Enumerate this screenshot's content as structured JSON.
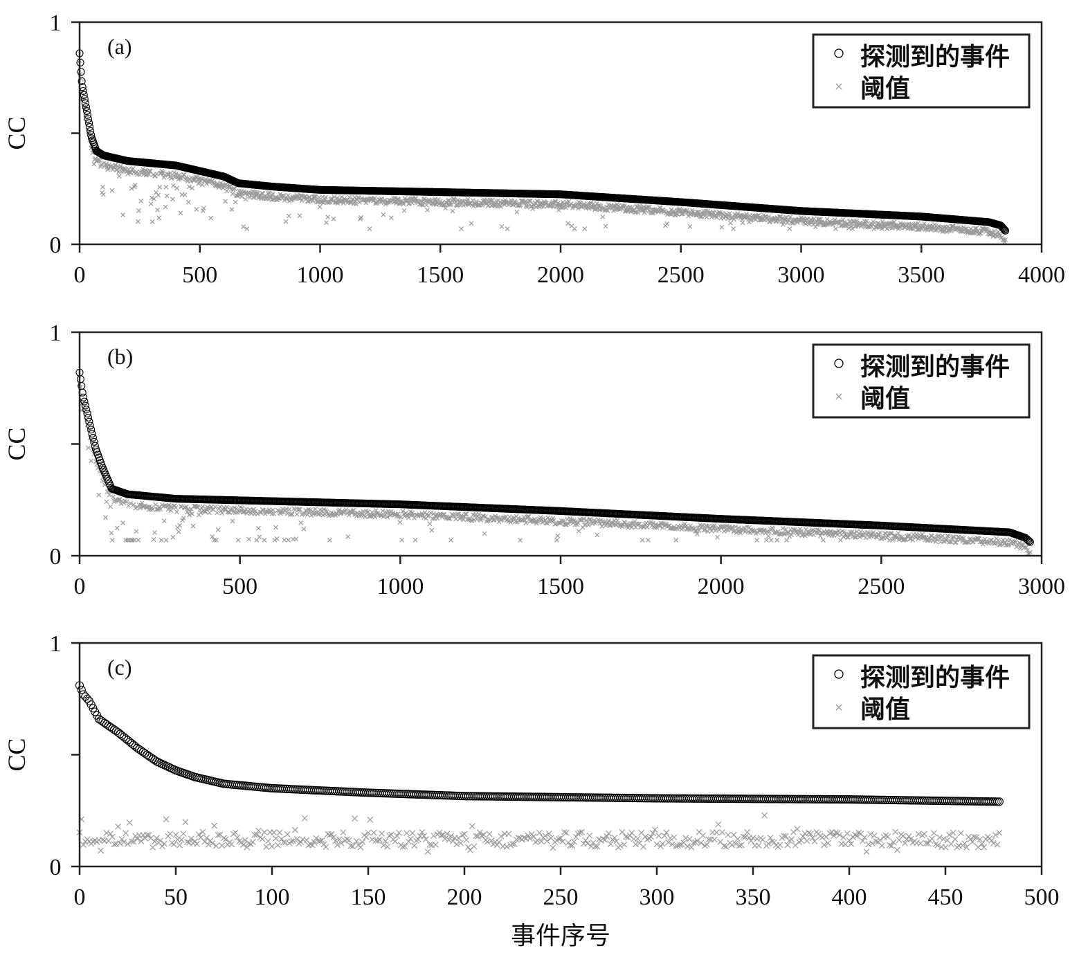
{
  "xlabel": "事件序号",
  "colors": {
    "detected": "#000000",
    "threshold": "#999999",
    "axis": "#222222"
  },
  "chart_data": [
    {
      "type": "scatter",
      "panel_label": "(a)",
      "ylabel": "CC",
      "xlim": [
        0,
        4000
      ],
      "ylim": [
        0,
        1
      ],
      "xticks": [
        "0",
        "500",
        "1000",
        "1500",
        "2000",
        "2500",
        "3000",
        "3500",
        "4000"
      ],
      "yticks": [
        0,
        0.5,
        1
      ],
      "ytick_labels": [
        "0",
        "",
        "1"
      ],
      "legend": {
        "position": "top-right",
        "entries": [
          "探测到的事件",
          "阈值"
        ]
      },
      "n_events": 3850,
      "detected_curve": [
        [
          0,
          0.86
        ],
        [
          10,
          0.72
        ],
        [
          30,
          0.6
        ],
        [
          50,
          0.48
        ],
        [
          70,
          0.42
        ],
        [
          100,
          0.4
        ],
        [
          200,
          0.375
        ],
        [
          400,
          0.355
        ],
        [
          600,
          0.305
        ],
        [
          660,
          0.275
        ],
        [
          800,
          0.26
        ],
        [
          1000,
          0.245
        ],
        [
          1500,
          0.235
        ],
        [
          2000,
          0.225
        ],
        [
          2500,
          0.19
        ],
        [
          3000,
          0.15
        ],
        [
          3500,
          0.125
        ],
        [
          3780,
          0.1
        ],
        [
          3830,
          0.085
        ],
        [
          3850,
          0.06
        ]
      ],
      "threshold_typical_gap": 0.03,
      "threshold_outlier_range": [
        0.08,
        0.25
      ]
    },
    {
      "type": "scatter",
      "panel_label": "(b)",
      "ylabel": "CC",
      "xlim": [
        0,
        3000
      ],
      "ylim": [
        0,
        1
      ],
      "xticks": [
        "0",
        "500",
        "1000",
        "1500",
        "2000",
        "2500",
        "3000"
      ],
      "yticks": [
        0,
        0.5,
        1
      ],
      "ytick_labels": [
        "0",
        "",
        "1"
      ],
      "legend": {
        "position": "top-right",
        "entries": [
          "探测到的事件",
          "阈值"
        ]
      },
      "n_events": 2965,
      "detected_curve": [
        [
          0,
          0.82
        ],
        [
          10,
          0.72
        ],
        [
          30,
          0.6
        ],
        [
          50,
          0.48
        ],
        [
          70,
          0.4
        ],
        [
          100,
          0.3
        ],
        [
          150,
          0.275
        ],
        [
          300,
          0.255
        ],
        [
          1000,
          0.23
        ],
        [
          1500,
          0.2
        ],
        [
          2000,
          0.165
        ],
        [
          2500,
          0.135
        ],
        [
          2900,
          0.105
        ],
        [
          2950,
          0.08
        ],
        [
          2965,
          0.06
        ]
      ],
      "threshold_typical_gap": 0.03,
      "threshold_outlier_range": [
        0.08,
        0.2
      ]
    },
    {
      "type": "scatter",
      "panel_label": "(c)",
      "ylabel": "CC",
      "xlim": [
        0,
        500
      ],
      "ylim": [
        0,
        1
      ],
      "xticks": [
        "0",
        "50",
        "100",
        "150",
        "200",
        "250",
        "300",
        "350",
        "400",
        "450",
        "500"
      ],
      "yticks": [
        0,
        0.5,
        1
      ],
      "ytick_labels": [
        "0",
        "",
        "1"
      ],
      "legend": {
        "position": "top-right",
        "entries": [
          "探测到的事件",
          "阈值"
        ]
      },
      "n_events": 478,
      "detected_curve": [
        [
          0,
          0.81
        ],
        [
          2,
          0.77
        ],
        [
          5,
          0.74
        ],
        [
          10,
          0.66
        ],
        [
          20,
          0.6
        ],
        [
          30,
          0.53
        ],
        [
          40,
          0.47
        ],
        [
          50,
          0.43
        ],
        [
          60,
          0.4
        ],
        [
          75,
          0.37
        ],
        [
          100,
          0.35
        ],
        [
          150,
          0.33
        ],
        [
          200,
          0.315
        ],
        [
          300,
          0.305
        ],
        [
          400,
          0.3
        ],
        [
          478,
          0.29
        ]
      ],
      "threshold_level": 0.12,
      "threshold_outlier_range": [
        0.06,
        0.23
      ]
    }
  ]
}
